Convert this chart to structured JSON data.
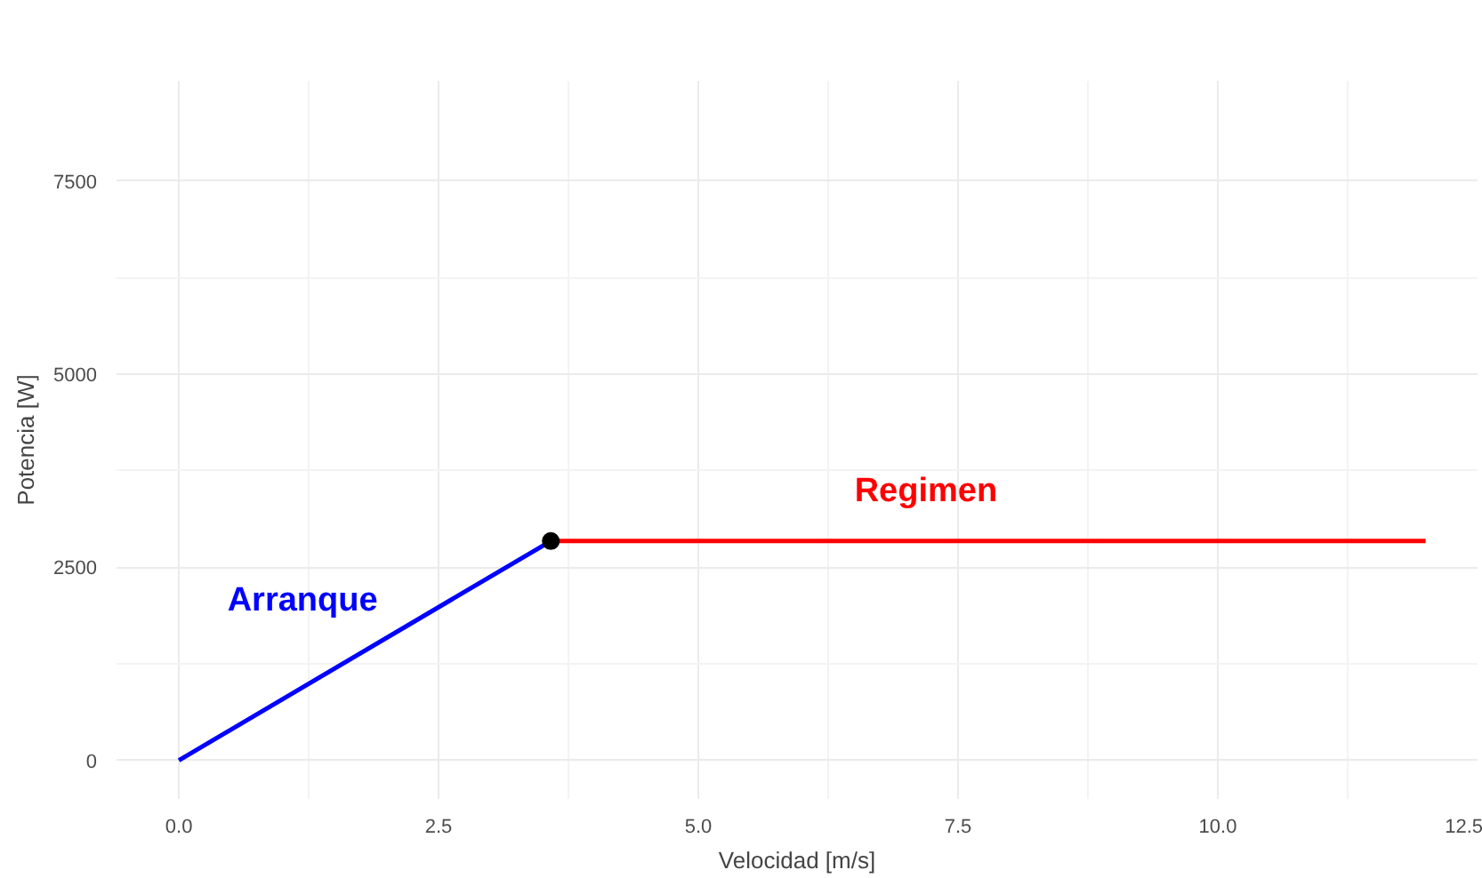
{
  "chart_data": {
    "type": "line",
    "xlabel": "Velocidad [m/s]",
    "ylabel": "Potencia [W]",
    "series": [
      {
        "name": "Arranque",
        "color": "#0000ff",
        "x": [
          0,
          3.58
        ],
        "values": [
          0,
          2840
        ]
      },
      {
        "name": "Regimen",
        "color": "#ff0000",
        "x": [
          3.58,
          12
        ],
        "values": [
          2840,
          2840
        ]
      },
      {
        "type": "scatter",
        "color": "#000000",
        "x": [
          3.58
        ],
        "values": [
          2840
        ]
      }
    ],
    "xlim": [
      -0.6,
      12.5
    ],
    "ylim": [
      -500,
      8800
    ],
    "xticks": [
      {
        "value": 0,
        "label": "0.0"
      },
      {
        "value": 2.5,
        "label": "2.5"
      },
      {
        "value": 5,
        "label": "5.0"
      },
      {
        "value": 7.5,
        "label": "7.5"
      },
      {
        "value": 10,
        "label": "10.0"
      },
      {
        "value": 12.5,
        "label": "12.5"
      }
    ],
    "yticks": [
      0,
      2500,
      5000,
      7500
    ],
    "grid": true
  }
}
